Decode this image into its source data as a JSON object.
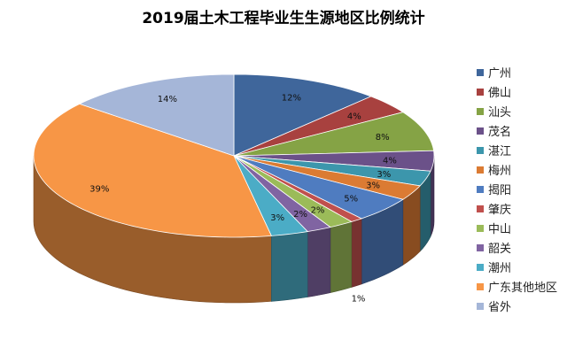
{
  "title": "2019届土木工程毕业生生源地区比例统计",
  "chart_data": {
    "type": "pie",
    "title": "2019届土木工程毕业生生源地区比例统计",
    "legend_position": "right",
    "slices": [
      {
        "label": "广州",
        "value": 12,
        "data_label": "12%",
        "color": "#3f669b"
      },
      {
        "label": "佛山",
        "value": 4,
        "data_label": "4%",
        "color": "#a8413f"
      },
      {
        "label": "汕头",
        "value": 8,
        "data_label": "8%",
        "color": "#85a345"
      },
      {
        "label": "茂名",
        "value": 4,
        "data_label": "4%",
        "color": "#6b5189"
      },
      {
        "label": "湛江",
        "value": 3,
        "data_label": "3%",
        "color": "#3c96ac"
      },
      {
        "label": "梅州",
        "value": 3,
        "data_label": "3%",
        "color": "#db7b33"
      },
      {
        "label": "揭阳",
        "value": 5,
        "data_label": "5%",
        "color": "#4f7cc0"
      },
      {
        "label": "肇庆",
        "value": 1,
        "data_label": "1%",
        "color": "#c0504d"
      },
      {
        "label": "中山",
        "value": 2,
        "data_label": "2%",
        "color": "#9bbb59"
      },
      {
        "label": "韶关",
        "value": 2,
        "data_label": "2%",
        "color": "#8064a2"
      },
      {
        "label": "潮州",
        "value": 3,
        "data_label": "3%",
        "color": "#4bacc6"
      },
      {
        "label": "广东其他地区",
        "value": 39,
        "data_label": "39%",
        "color": "#f79646"
      },
      {
        "label": "省外",
        "value": 14,
        "data_label": "14%",
        "color": "#a5b6d8"
      }
    ]
  }
}
